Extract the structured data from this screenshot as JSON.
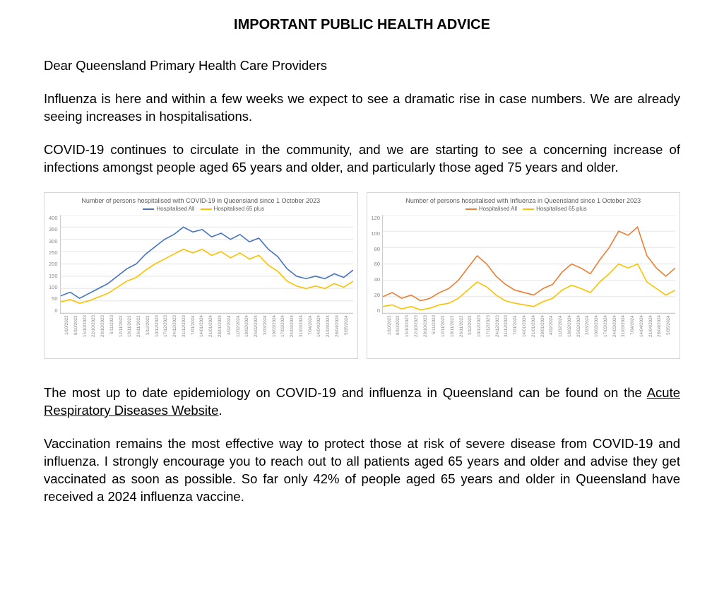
{
  "title": "IMPORTANT PUBLIC HEALTH ADVICE",
  "paragraphs": {
    "greeting": "Dear Queensland Primary Health Care Providers",
    "p1": "Influenza is here and within a few weeks we expect to see a dramatic rise in case numbers. We are already seeing increases in hospitalisations.",
    "p2": "COVID-19 continues to circulate in the community, and we are starting to see a concerning increase of infections amongst people aged 65 years and older, and particularly those aged 75 years and older.",
    "p3a": "The most up to date epidemiology on COVID-19 and influenza in Queensland can be found on the ",
    "p3_link": "Acute Respiratory Diseases Website",
    "p3b": ".",
    "p4": "Vaccination remains the most effective way to protect those at risk of severe disease from COVID-19 and influenza. I strongly encourage you to reach out to all patients aged 65 years and older and advise they get vaccinated as soon as possible. So far only 42% of people aged 65 years and older in Queensland have received a 2024 influenza vaccine."
  },
  "x_labels": [
    "1/10/2023",
    "8/10/2023",
    "15/10/2023",
    "22/10/2023",
    "29/10/2023",
    "5/11/2023",
    "12/11/2023",
    "19/11/2023",
    "26/11/2023",
    "3/12/2023",
    "10/12/2023",
    "17/12/2023",
    "24/12/2023",
    "31/12/2023",
    "7/01/2024",
    "14/01/2024",
    "21/01/2024",
    "28/01/2024",
    "4/02/2024",
    "11/02/2024",
    "18/02/2024",
    "25/02/2024",
    "3/03/2024",
    "10/03/2024",
    "17/03/2024",
    "24/03/2024",
    "31/03/2024",
    "7/04/2024",
    "14/04/2024",
    "21/04/2024",
    "28/04/2024",
    "5/05/2024"
  ],
  "chart_covid": {
    "title": "Number of persons hospitalised with COVID-19 in Queensland since 1 October 2023",
    "legend": [
      {
        "label": "Hospitalised All",
        "color": "#4472c4"
      },
      {
        "label": "Hospitalised 65 plus",
        "color": "#ffc000"
      }
    ],
    "ylim": [
      0,
      400
    ],
    "yticks": [
      0,
      50,
      100,
      150,
      200,
      250,
      300,
      350,
      400
    ],
    "grid_color": "#ececec",
    "background": "#ffffff",
    "series": [
      {
        "name": "all",
        "color": "#4472c4",
        "width": 1.6,
        "values": [
          70,
          85,
          60,
          80,
          100,
          120,
          150,
          180,
          200,
          240,
          270,
          300,
          320,
          350,
          330,
          340,
          310,
          325,
          300,
          320,
          290,
          305,
          260,
          230,
          180,
          150,
          140,
          150,
          140,
          160,
          145,
          175
        ]
      },
      {
        "name": "65plus",
        "color": "#ffc000",
        "width": 1.6,
        "values": [
          45,
          55,
          40,
          50,
          65,
          80,
          105,
          130,
          145,
          175,
          200,
          220,
          240,
          260,
          245,
          260,
          235,
          250,
          225,
          245,
          220,
          235,
          195,
          170,
          130,
          110,
          100,
          110,
          100,
          120,
          105,
          130
        ]
      }
    ],
    "title_fontsize": 9,
    "label_fontsize": 7.5
  },
  "chart_flu": {
    "title": "Number of persons hospitalised with Influenza in Queensland since 1 October 2023",
    "legend": [
      {
        "label": "Hospitalised All",
        "color": "#ed7d31"
      },
      {
        "label": "Hospitalised 65 plus",
        "color": "#ffc000"
      }
    ],
    "ylim": [
      0,
      120
    ],
    "yticks": [
      0,
      20,
      40,
      60,
      80,
      100,
      120
    ],
    "grid_color": "#ececec",
    "background": "#ffffff",
    "series": [
      {
        "name": "all",
        "color": "#ed7d31",
        "width": 1.6,
        "values": [
          20,
          25,
          18,
          22,
          15,
          18,
          25,
          30,
          40,
          55,
          70,
          60,
          45,
          35,
          28,
          25,
          22,
          30,
          35,
          50,
          60,
          55,
          48,
          65,
          80,
          100,
          95,
          105,
          70,
          55,
          45,
          55
        ]
      },
      {
        "name": "65plus",
        "color": "#ffc000",
        "width": 1.6,
        "values": [
          8,
          10,
          5,
          8,
          4,
          6,
          10,
          12,
          18,
          28,
          38,
          32,
          22,
          15,
          12,
          10,
          8,
          14,
          18,
          28,
          34,
          30,
          25,
          38,
          48,
          60,
          55,
          60,
          38,
          30,
          22,
          28
        ]
      }
    ],
    "title_fontsize": 9,
    "label_fontsize": 7.5
  }
}
